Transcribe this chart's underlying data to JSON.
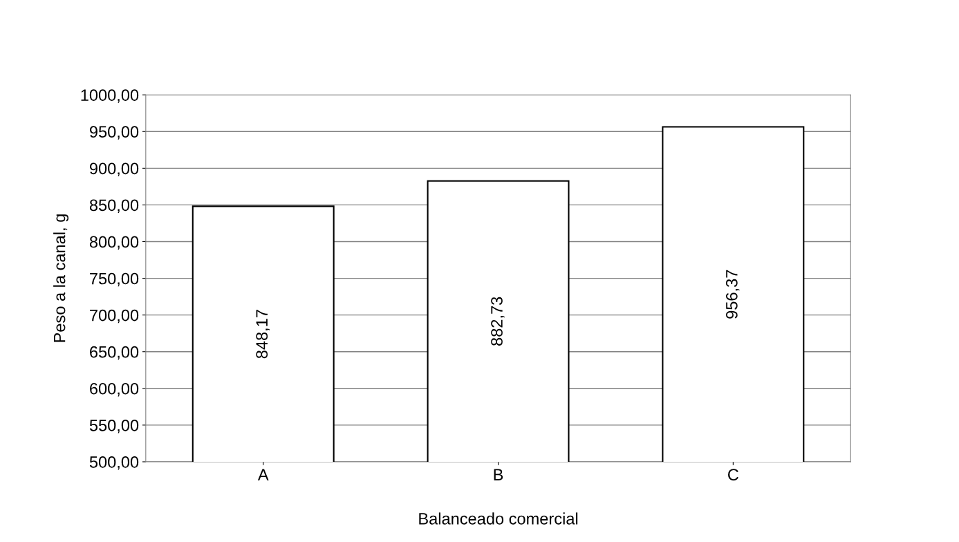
{
  "chart_data": {
    "type": "bar",
    "xlabel": "Balanceado comercial",
    "ylabel": "Peso a la canal, g",
    "categories": [
      "A",
      "B",
      "C"
    ],
    "values": [
      848.17,
      882.73,
      956.37
    ],
    "color": "#ffffff",
    "value_labels": [
      "848,17",
      "882,73",
      "956,37"
    ],
    "ylim": [
      500,
      1000
    ],
    "yticks": [
      {
        "value": 500,
        "label": "500,00"
      },
      {
        "value": 550,
        "label": "550,00"
      },
      {
        "value": 600,
        "label": "600,00"
      },
      {
        "value": 650,
        "label": "650,00"
      },
      {
        "value": 700,
        "label": "700,00"
      },
      {
        "value": 750,
        "label": "750,00"
      },
      {
        "value": 800,
        "label": "800,00"
      },
      {
        "value": 850,
        "label": "850,00"
      },
      {
        "value": 900,
        "label": "900,00"
      },
      {
        "value": 950,
        "label": "950,00"
      },
      {
        "value": 1000,
        "label": "1000,00"
      }
    ],
    "grid": "y"
  }
}
